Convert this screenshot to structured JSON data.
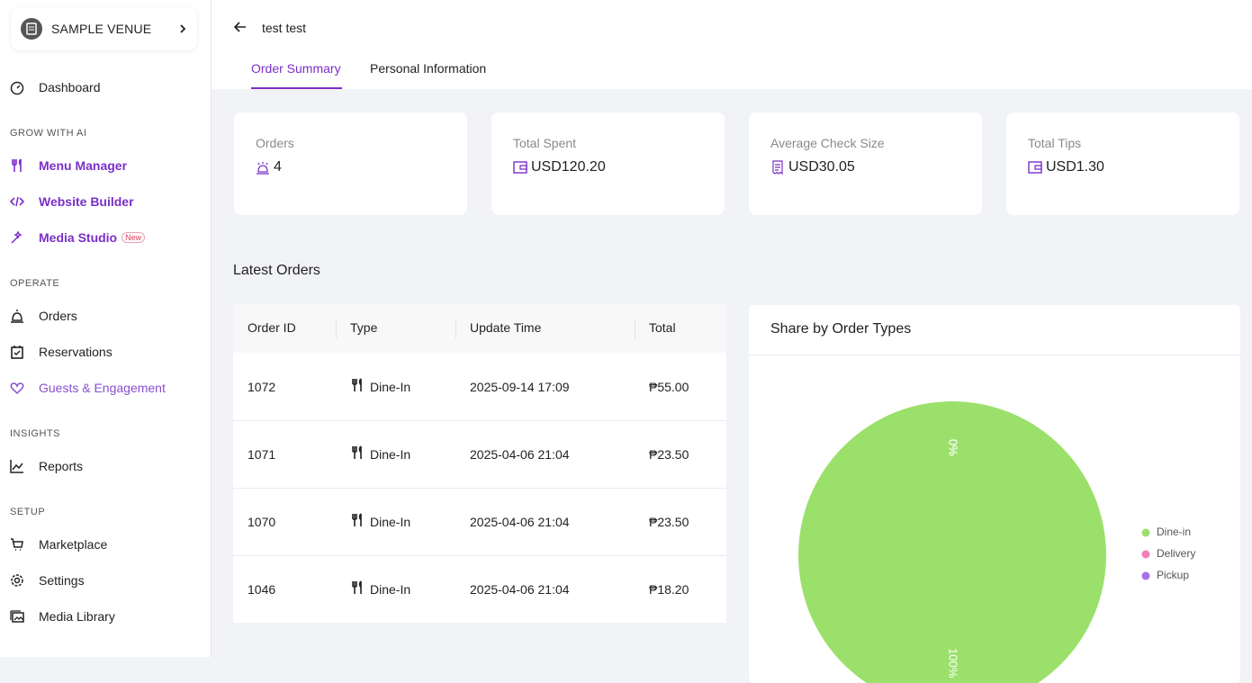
{
  "sidebar": {
    "venue": "SAMPLE VENUE",
    "sections": [
      {
        "items": [
          "Dashboard"
        ]
      },
      {
        "heading": "GROW WITH AI",
        "items": [
          "Menu Manager",
          "Website Builder",
          "Media Studio"
        ],
        "badge": "New"
      },
      {
        "heading": "OPERATE",
        "items": [
          "Orders",
          "Reservations",
          "Guests & Engagement"
        ]
      },
      {
        "heading": "INSIGHTS",
        "items": [
          "Reports"
        ]
      },
      {
        "heading": "SETUP",
        "items": [
          "Marketplace",
          "Settings",
          "Media Library"
        ]
      }
    ]
  },
  "header": {
    "title": "test test",
    "tabs": [
      "Order Summary",
      "Personal Information"
    ]
  },
  "stats": [
    {
      "label": "Orders",
      "value": "4"
    },
    {
      "label": "Total Spent",
      "value": "USD120.20"
    },
    {
      "label": "Average Check Size",
      "value": "USD30.05"
    },
    {
      "label": "Total Tips",
      "value": "USD1.30"
    }
  ],
  "latest_orders": {
    "title": "Latest Orders",
    "columns": [
      "Order ID",
      "Type",
      "Update Time",
      "Total"
    ],
    "rows": [
      [
        "1072",
        "Dine-In",
        "2025-09-14 17:09",
        "₱55.00"
      ],
      [
        "1071",
        "Dine-In",
        "2025-04-06 21:04",
        "₱23.50"
      ],
      [
        "1070",
        "Dine-In",
        "2025-04-06 21:04",
        "₱23.50"
      ],
      [
        "1046",
        "Dine-In",
        "2025-04-06 21:04",
        "₱18.20"
      ]
    ]
  },
  "chart_data": {
    "type": "pie",
    "title": "Share by Order Types",
    "categories": [
      "Dine-in",
      "Delivery",
      "Pickup"
    ],
    "values": [
      100,
      0,
      0
    ],
    "value_labels": [
      "100%",
      "0%",
      "0%"
    ],
    "colors": [
      "#9be06b",
      "#f27fbb",
      "#a771e8"
    ]
  }
}
